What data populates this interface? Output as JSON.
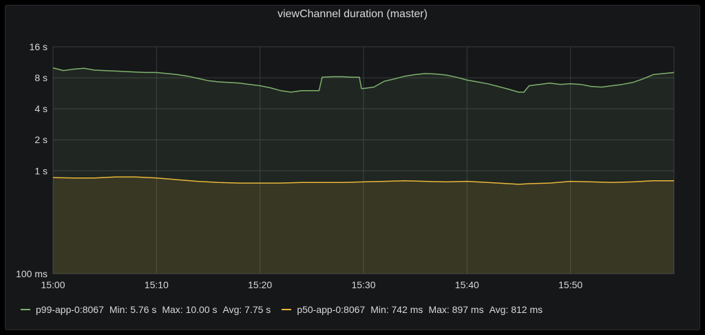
{
  "panel": {
    "title": "viewChannel duration (master)"
  },
  "chart_data": {
    "type": "line",
    "title": "viewChannel duration (master)",
    "x_axis": {
      "scale": "time",
      "ticks": [
        "15:00",
        "15:10",
        "15:20",
        "15:30",
        "15:40",
        "15:50"
      ],
      "range_minutes": [
        0,
        60
      ]
    },
    "y_axis": {
      "scale": "log",
      "range_seconds": [
        0.1,
        16
      ],
      "ticks": [
        {
          "value": 16,
          "label": "16 s"
        },
        {
          "value": 8,
          "label": "8 s"
        },
        {
          "value": 4,
          "label": "4 s"
        },
        {
          "value": 2,
          "label": "2 s"
        },
        {
          "value": 1,
          "label": "1 s"
        },
        {
          "value": 0.1,
          "label": "100 ms"
        }
      ]
    },
    "grid": true,
    "legend_position": "bottom-left",
    "series": [
      {
        "name": "p99-app-0:8067",
        "color": "#7eb26d",
        "stats": {
          "min": "Min: 5.76 s",
          "max": "Max: 10.00 s",
          "avg": "Avg: 7.75 s"
        },
        "points": [
          [
            0,
            10.0
          ],
          [
            1,
            9.4
          ],
          [
            2,
            9.7
          ],
          [
            3,
            9.9
          ],
          [
            4,
            9.5
          ],
          [
            5,
            9.4
          ],
          [
            6,
            9.3
          ],
          [
            7,
            9.2
          ],
          [
            8,
            9.1
          ],
          [
            9,
            9.0
          ],
          [
            10,
            9.0
          ],
          [
            11,
            8.8
          ],
          [
            12,
            8.6
          ],
          [
            13,
            8.3
          ],
          [
            14,
            7.9
          ],
          [
            15,
            7.5
          ],
          [
            16,
            7.3
          ],
          [
            17,
            7.2
          ],
          [
            18,
            7.1
          ],
          [
            19,
            6.9
          ],
          [
            20,
            6.7
          ],
          [
            21,
            6.4
          ],
          [
            22,
            6.0
          ],
          [
            23,
            5.8
          ],
          [
            24,
            6.0
          ],
          [
            25,
            6.0
          ],
          [
            25.7,
            6.0
          ],
          [
            26,
            8.1
          ],
          [
            27,
            8.2
          ],
          [
            28,
            8.2
          ],
          [
            29,
            8.1
          ],
          [
            29.6,
            8.1
          ],
          [
            29.8,
            6.3
          ],
          [
            30,
            6.3
          ],
          [
            31,
            6.5
          ],
          [
            32,
            7.4
          ],
          [
            33,
            7.8
          ],
          [
            34,
            8.3
          ],
          [
            35,
            8.6
          ],
          [
            36,
            8.8
          ],
          [
            37,
            8.7
          ],
          [
            38,
            8.5
          ],
          [
            39,
            8.1
          ],
          [
            40,
            7.6
          ],
          [
            41,
            7.3
          ],
          [
            42,
            7.0
          ],
          [
            43,
            6.6
          ],
          [
            44,
            6.2
          ],
          [
            45,
            5.8
          ],
          [
            45.5,
            5.8
          ],
          [
            46,
            6.7
          ],
          [
            47,
            6.9
          ],
          [
            48,
            7.1
          ],
          [
            49,
            6.9
          ],
          [
            50,
            7.0
          ],
          [
            51,
            6.9
          ],
          [
            52,
            6.6
          ],
          [
            53,
            6.5
          ],
          [
            54,
            6.7
          ],
          [
            55,
            6.9
          ],
          [
            56,
            7.2
          ],
          [
            57,
            7.8
          ],
          [
            58,
            8.6
          ],
          [
            59,
            8.8
          ],
          [
            60,
            9.0
          ]
        ]
      },
      {
        "name": "p50-app-0:8067",
        "color": "#eab839",
        "stats": {
          "min": "Min: 742 ms",
          "max": "Max: 897 ms",
          "avg": "Avg: 812 ms"
        },
        "points": [
          [
            0,
            0.86
          ],
          [
            2,
            0.85
          ],
          [
            4,
            0.85
          ],
          [
            6,
            0.87
          ],
          [
            8,
            0.87
          ],
          [
            10,
            0.85
          ],
          [
            12,
            0.82
          ],
          [
            14,
            0.79
          ],
          [
            16,
            0.77
          ],
          [
            18,
            0.76
          ],
          [
            20,
            0.76
          ],
          [
            22,
            0.76
          ],
          [
            24,
            0.77
          ],
          [
            26,
            0.77
          ],
          [
            28,
            0.77
          ],
          [
            30,
            0.78
          ],
          [
            32,
            0.79
          ],
          [
            34,
            0.8
          ],
          [
            36,
            0.79
          ],
          [
            38,
            0.78
          ],
          [
            40,
            0.79
          ],
          [
            42,
            0.77
          ],
          [
            44,
            0.75
          ],
          [
            45,
            0.74
          ],
          [
            46,
            0.75
          ],
          [
            48,
            0.76
          ],
          [
            50,
            0.79
          ],
          [
            52,
            0.78
          ],
          [
            54,
            0.77
          ],
          [
            56,
            0.78
          ],
          [
            58,
            0.8
          ],
          [
            60,
            0.8
          ]
        ]
      }
    ]
  }
}
